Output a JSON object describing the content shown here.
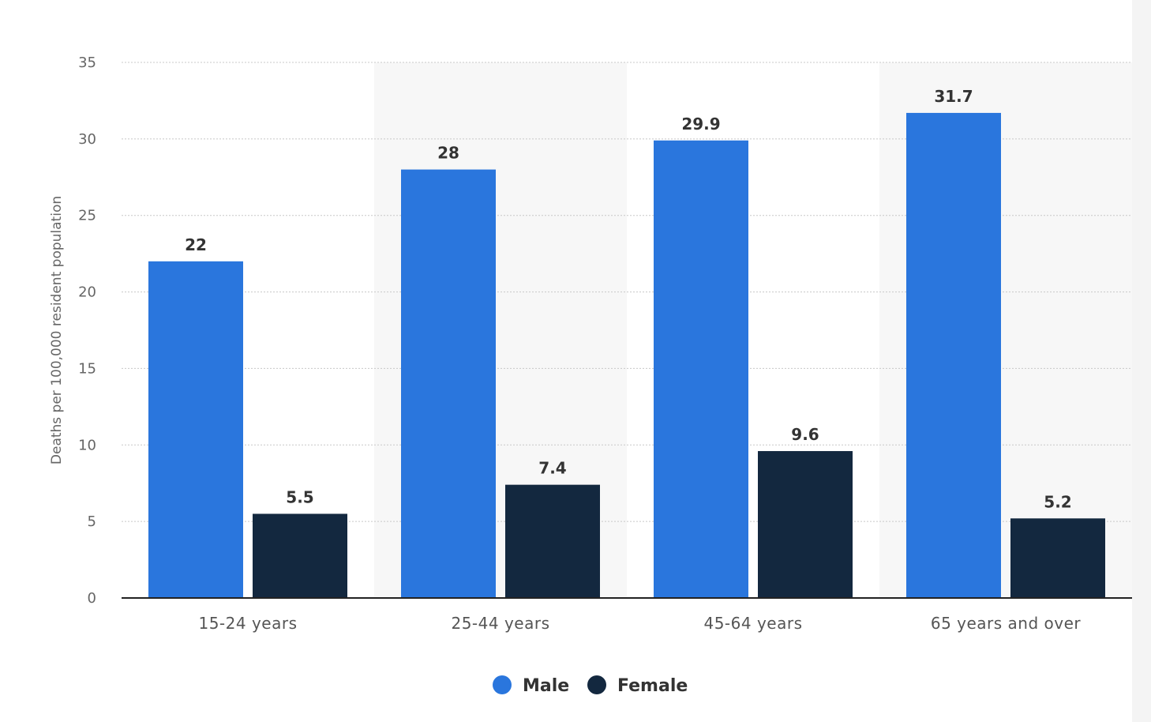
{
  "chart_data": {
    "type": "bar",
    "title": "",
    "xlabel": "",
    "ylabel": "Deaths per 100,000 resident population",
    "ylim": [
      0,
      35
    ],
    "yticks": [
      0,
      5,
      10,
      15,
      20,
      25,
      30,
      35
    ],
    "categories": [
      "15-24 years",
      "25-44 years",
      "45-64 years",
      "65 years and over"
    ],
    "series": [
      {
        "name": "Male",
        "color": "#2a76dd",
        "values": [
          22,
          28,
          29.9,
          31.7
        ]
      },
      {
        "name": "Female",
        "color": "#13283f",
        "values": [
          5.5,
          7.4,
          9.6,
          5.2
        ]
      }
    ],
    "grid": true,
    "legend_position": "bottom-center",
    "alternating_band_color": "#f7f7f7"
  }
}
